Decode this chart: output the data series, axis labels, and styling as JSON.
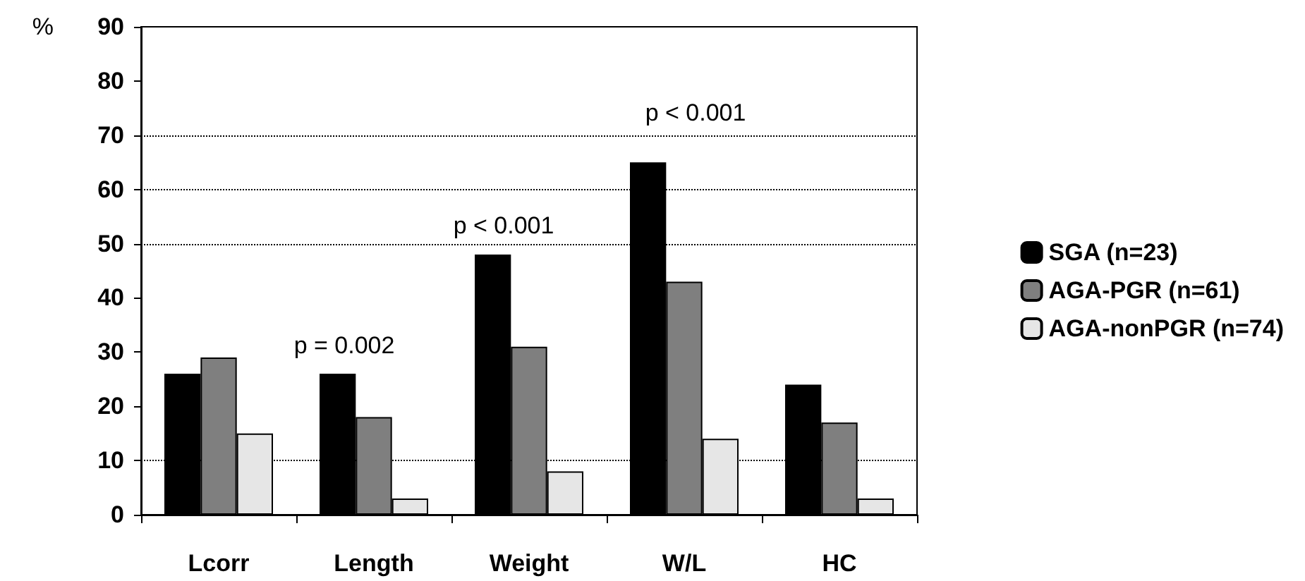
{
  "chart_data": {
    "type": "bar",
    "ylabel": "%",
    "categories": [
      "Lcorr",
      "Length",
      "Weight",
      "W/L",
      "HC"
    ],
    "series": [
      {
        "name": "SGA (n=23)",
        "color": "#000000",
        "values": [
          26,
          26,
          48,
          65,
          24
        ]
      },
      {
        "name": "AGA-PGR (n=61)",
        "color": "#7f7f7f",
        "values": [
          29,
          18,
          31,
          43,
          17
        ]
      },
      {
        "name": "AGA-nonPGR (n=74)",
        "color": "#e6e6e6",
        "values": [
          15,
          3,
          8,
          14,
          3
        ]
      }
    ],
    "ylim": [
      0,
      90
    ],
    "yticks": [
      0,
      10,
      20,
      30,
      40,
      50,
      60,
      70,
      80,
      90
    ],
    "grid": false,
    "legend": "right",
    "ref_lines": [
      {
        "axis": "y",
        "value": 10,
        "line_style": "dotted"
      },
      {
        "axis": "y",
        "value": 50,
        "line_style": "dotted"
      },
      {
        "axis": "y",
        "value": 60,
        "line_style": "dotted"
      },
      {
        "axis": "y",
        "value": 70,
        "line_style": "dotted"
      }
    ],
    "annotations": [
      "p = 0.002",
      "p < 0.001",
      "p < 0.001"
    ]
  }
}
